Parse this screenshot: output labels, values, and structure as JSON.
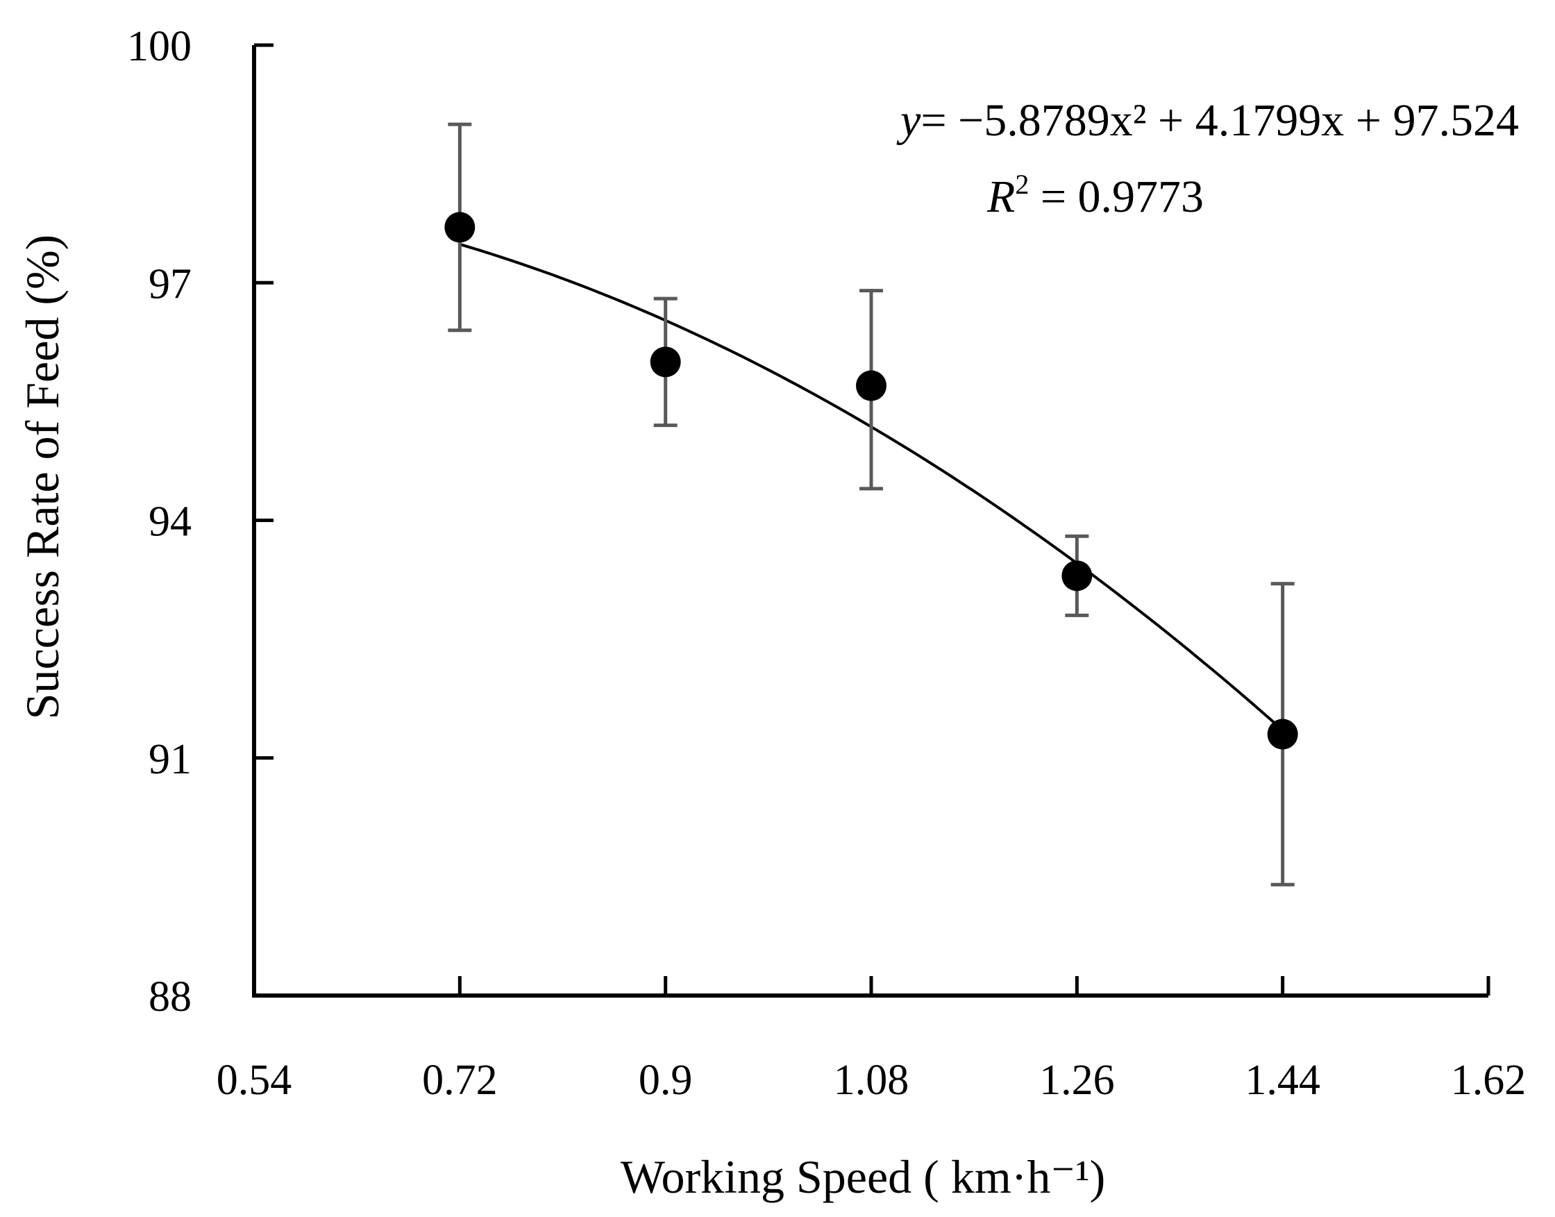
{
  "chart_data": {
    "type": "scatter",
    "title": "",
    "xlabel": "Working Speed ( km·h⁻¹)",
    "ylabel": "Success Rate of Feed (%)",
    "xlim": [
      0.54,
      1.62
    ],
    "ylim": [
      88,
      100
    ],
    "x_ticks": [
      0.54,
      0.72,
      0.9,
      1.08,
      1.26,
      1.44,
      1.62
    ],
    "x_tick_labels": [
      "0.54",
      "0.72",
      "0.9",
      "1.08",
      "1.26",
      "1.44",
      "1.62"
    ],
    "y_ticks": [
      88,
      91,
      94,
      97,
      100
    ],
    "y_tick_labels": [
      "88",
      "91",
      "94",
      "97",
      "100"
    ],
    "grid": false,
    "series": [
      {
        "name": "Success Rate of Feed",
        "x": [
          0.72,
          0.9,
          1.08,
          1.26,
          1.44
        ],
        "y": [
          97.7,
          96.0,
          95.7,
          93.3,
          91.3
        ],
        "error_upper": [
          99.0,
          96.8,
          96.9,
          93.8,
          93.2
        ],
        "error_lower": [
          96.4,
          95.2,
          94.4,
          92.8,
          89.4
        ]
      }
    ],
    "trendline": {
      "type": "polynomial",
      "coefficients": [
        -5.8789,
        4.1799,
        97.524
      ],
      "x_range": [
        0.72,
        1.44
      ]
    },
    "annotations": {
      "equation_y": "y",
      "equation_rest": "= −5.8789x² + 4.1799x + 97.524",
      "r2_label": "R",
      "r2_sup": "2",
      "r2_value": " = 0.9773"
    },
    "colors": {
      "axis": "#000000",
      "marker": "#000000",
      "error_bar": "#595959",
      "trendline": "#000000"
    }
  }
}
